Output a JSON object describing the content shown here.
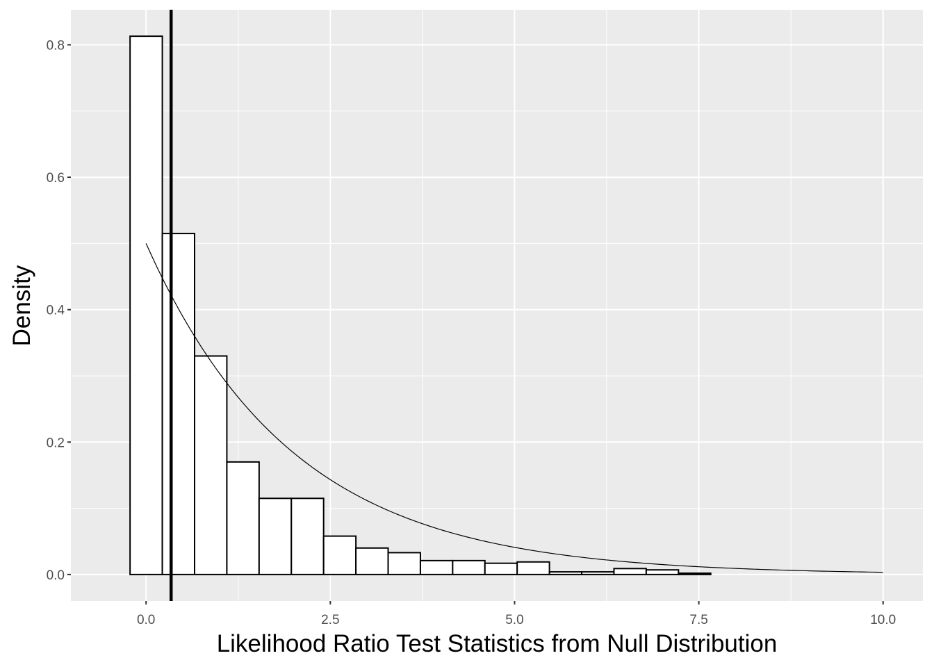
{
  "chart_data": {
    "type": "bar",
    "subtype": "histogram",
    "title": "",
    "xlabel": "Likelihood Ratio Test Statistics from Null Distribution",
    "ylabel": "Density",
    "xlim": [
      -1.02,
      10.54
    ],
    "ylim": [
      -0.04,
      0.853
    ],
    "x_ticks": [
      0,
      2.5,
      5,
      7.5,
      10
    ],
    "x_tick_labels": [
      "0.0",
      "2.5",
      "5.0",
      "7.5",
      "10.0"
    ],
    "y_ticks": [
      0,
      0.2,
      0.4,
      0.6,
      0.8
    ],
    "y_tick_labels": [
      "0.0",
      "0.2",
      "0.4",
      "0.6",
      "0.8"
    ],
    "grid": true,
    "bin_start": -0.217,
    "bin_width": 0.4377,
    "values": [
      0.813,
      0.515,
      0.33,
      0.17,
      0.115,
      0.115,
      0.058,
      0.04,
      0.033,
      0.021,
      0.021,
      0.017,
      0.019,
      0.004,
      0.004,
      0.009,
      0.007,
      0.002,
      0,
      0,
      0,
      0,
      0
    ],
    "bar_fill": "#ffffff",
    "bar_outline": "#000000",
    "vline_x": 0.34,
    "density_curve": {
      "formula": "0.5*exp(-x/2)",
      "x_range": [
        0,
        10
      ]
    },
    "panel_background": "#ebebeb"
  }
}
